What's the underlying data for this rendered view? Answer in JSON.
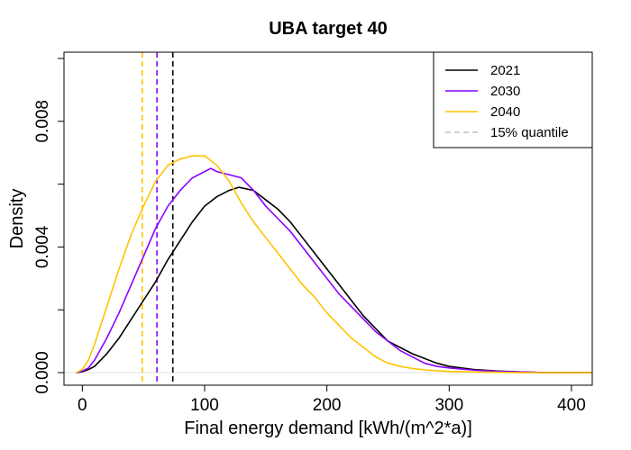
{
  "chart_data": {
    "type": "line",
    "title": "UBA target 40",
    "xlabel": "Final energy demand [kWh/(m^2*a)]",
    "ylabel": "Density",
    "xlim": [
      -15,
      417
    ],
    "ylim": [
      -0.0004,
      0.0102
    ],
    "x_ticks": [
      0,
      100,
      200,
      300,
      400
    ],
    "x_tick_labels": [
      "0",
      "100",
      "200",
      "300",
      "400"
    ],
    "y_ticks": [
      0.0,
      0.002,
      0.004,
      0.006,
      0.008,
      0.01
    ],
    "y_tick_labels": [
      "0.000",
      "",
      "0.004",
      "",
      "0.008",
      ""
    ],
    "legend_position": "top-right",
    "legend_quantile_label": "15% quantile",
    "series": [
      {
        "name": "2021",
        "color": "#000000",
        "quantile_15": 74,
        "x": [
          -5,
          0,
          5,
          10,
          20,
          30,
          40,
          50,
          60,
          70,
          80,
          90,
          100,
          110,
          120,
          128,
          140,
          150,
          160,
          170,
          180,
          190,
          200,
          210,
          220,
          230,
          240,
          250,
          260,
          270,
          280,
          290,
          300,
          320,
          340,
          360,
          380,
          400,
          417
        ],
        "y": [
          0.0,
          3e-05,
          0.0001,
          0.0002,
          0.0006,
          0.0011,
          0.0017,
          0.0023,
          0.0029,
          0.0036,
          0.0042,
          0.0048,
          0.0053,
          0.0056,
          0.0058,
          0.0059,
          0.0058,
          0.0055,
          0.0052,
          0.0048,
          0.0043,
          0.0038,
          0.0033,
          0.0028,
          0.0023,
          0.0018,
          0.0014,
          0.001,
          0.0008,
          0.0006,
          0.00045,
          0.0003,
          0.0002,
          0.0001,
          5e-05,
          2e-05,
          0.0,
          0.0,
          0.0
        ]
      },
      {
        "name": "2030",
        "color": "#8B00FF",
        "quantile_15": 61,
        "x": [
          -5,
          0,
          5,
          10,
          20,
          30,
          40,
          50,
          60,
          70,
          80,
          90,
          100,
          105,
          110,
          120,
          130,
          140,
          150,
          160,
          170,
          180,
          190,
          200,
          210,
          220,
          230,
          240,
          250,
          260,
          270,
          280,
          290,
          300,
          320,
          340,
          360,
          380,
          400,
          417
        ],
        "y": [
          0.0,
          5e-05,
          0.00015,
          0.0004,
          0.0011,
          0.0019,
          0.0028,
          0.0037,
          0.0046,
          0.0053,
          0.0058,
          0.0062,
          0.0064,
          0.0065,
          0.0064,
          0.0063,
          0.0062,
          0.0058,
          0.0053,
          0.0049,
          0.0045,
          0.004,
          0.0035,
          0.003,
          0.0025,
          0.0021,
          0.0017,
          0.0013,
          0.001,
          0.0007,
          0.0005,
          0.0003,
          0.0002,
          0.00015,
          8e-05,
          4e-05,
          2e-05,
          0.0,
          0.0,
          0.0
        ]
      },
      {
        "name": "2040",
        "color": "#FFC300",
        "quantile_15": 49,
        "x": [
          -5,
          0,
          5,
          10,
          20,
          30,
          40,
          50,
          60,
          70,
          80,
          90,
          95,
          100,
          110,
          120,
          130,
          140,
          150,
          160,
          170,
          180,
          190,
          200,
          210,
          220,
          230,
          240,
          250,
          260,
          270,
          280,
          290,
          300,
          320,
          340,
          360,
          380,
          400,
          417
        ],
        "y": [
          0.0,
          0.0001,
          0.0004,
          0.0009,
          0.0021,
          0.0033,
          0.0044,
          0.0053,
          0.0061,
          0.0066,
          0.0068,
          0.0069,
          0.0069,
          0.0069,
          0.0066,
          0.0061,
          0.0054,
          0.0048,
          0.0043,
          0.0038,
          0.0033,
          0.0028,
          0.0024,
          0.0019,
          0.0015,
          0.0011,
          0.0008,
          0.0005,
          0.0003,
          0.0002,
          0.00013,
          9e-05,
          6e-05,
          4e-05,
          2e-05,
          1e-05,
          0.0,
          0.0,
          0.0,
          0.0
        ]
      }
    ]
  }
}
